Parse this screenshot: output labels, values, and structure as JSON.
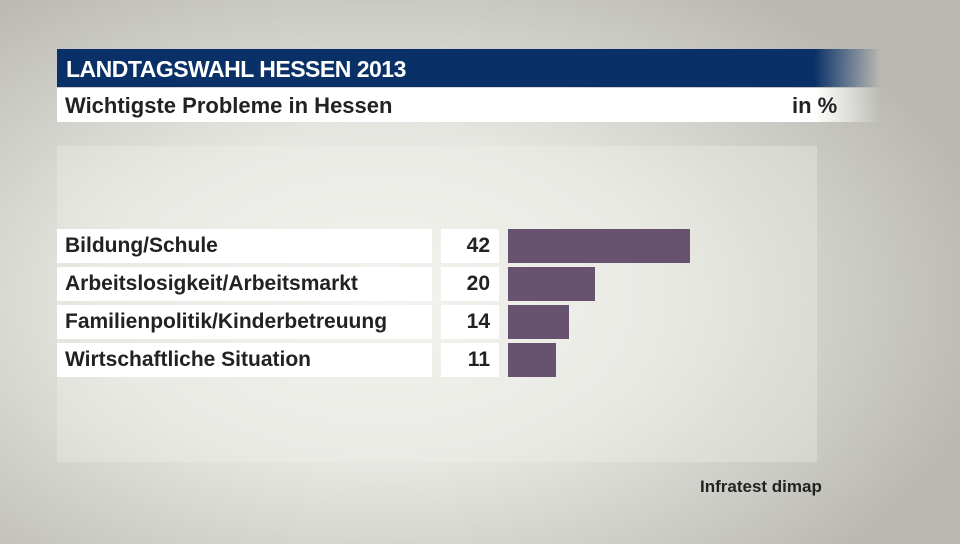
{
  "header": {
    "title": "LANDTAGSWAHL HESSEN 2013",
    "subtitle": "Wichtigste Probleme in Hessen",
    "unit": "in %"
  },
  "source": "Infratest dimap",
  "chart_data": {
    "type": "bar",
    "orientation": "horizontal",
    "categories": [
      "Bildung/Schule",
      "Arbeitslosigkeit/Arbeitsmarkt",
      "Familienpolitik/Kinderbetreuung",
      "Wirtschaftliche Situation"
    ],
    "values": [
      42,
      20,
      14,
      11
    ],
    "labels": [
      "42",
      "20",
      "14",
      "11"
    ],
    "bar_color": "#67536f",
    "title": "Wichtigste Probleme in Hessen",
    "unit": "in %"
  }
}
